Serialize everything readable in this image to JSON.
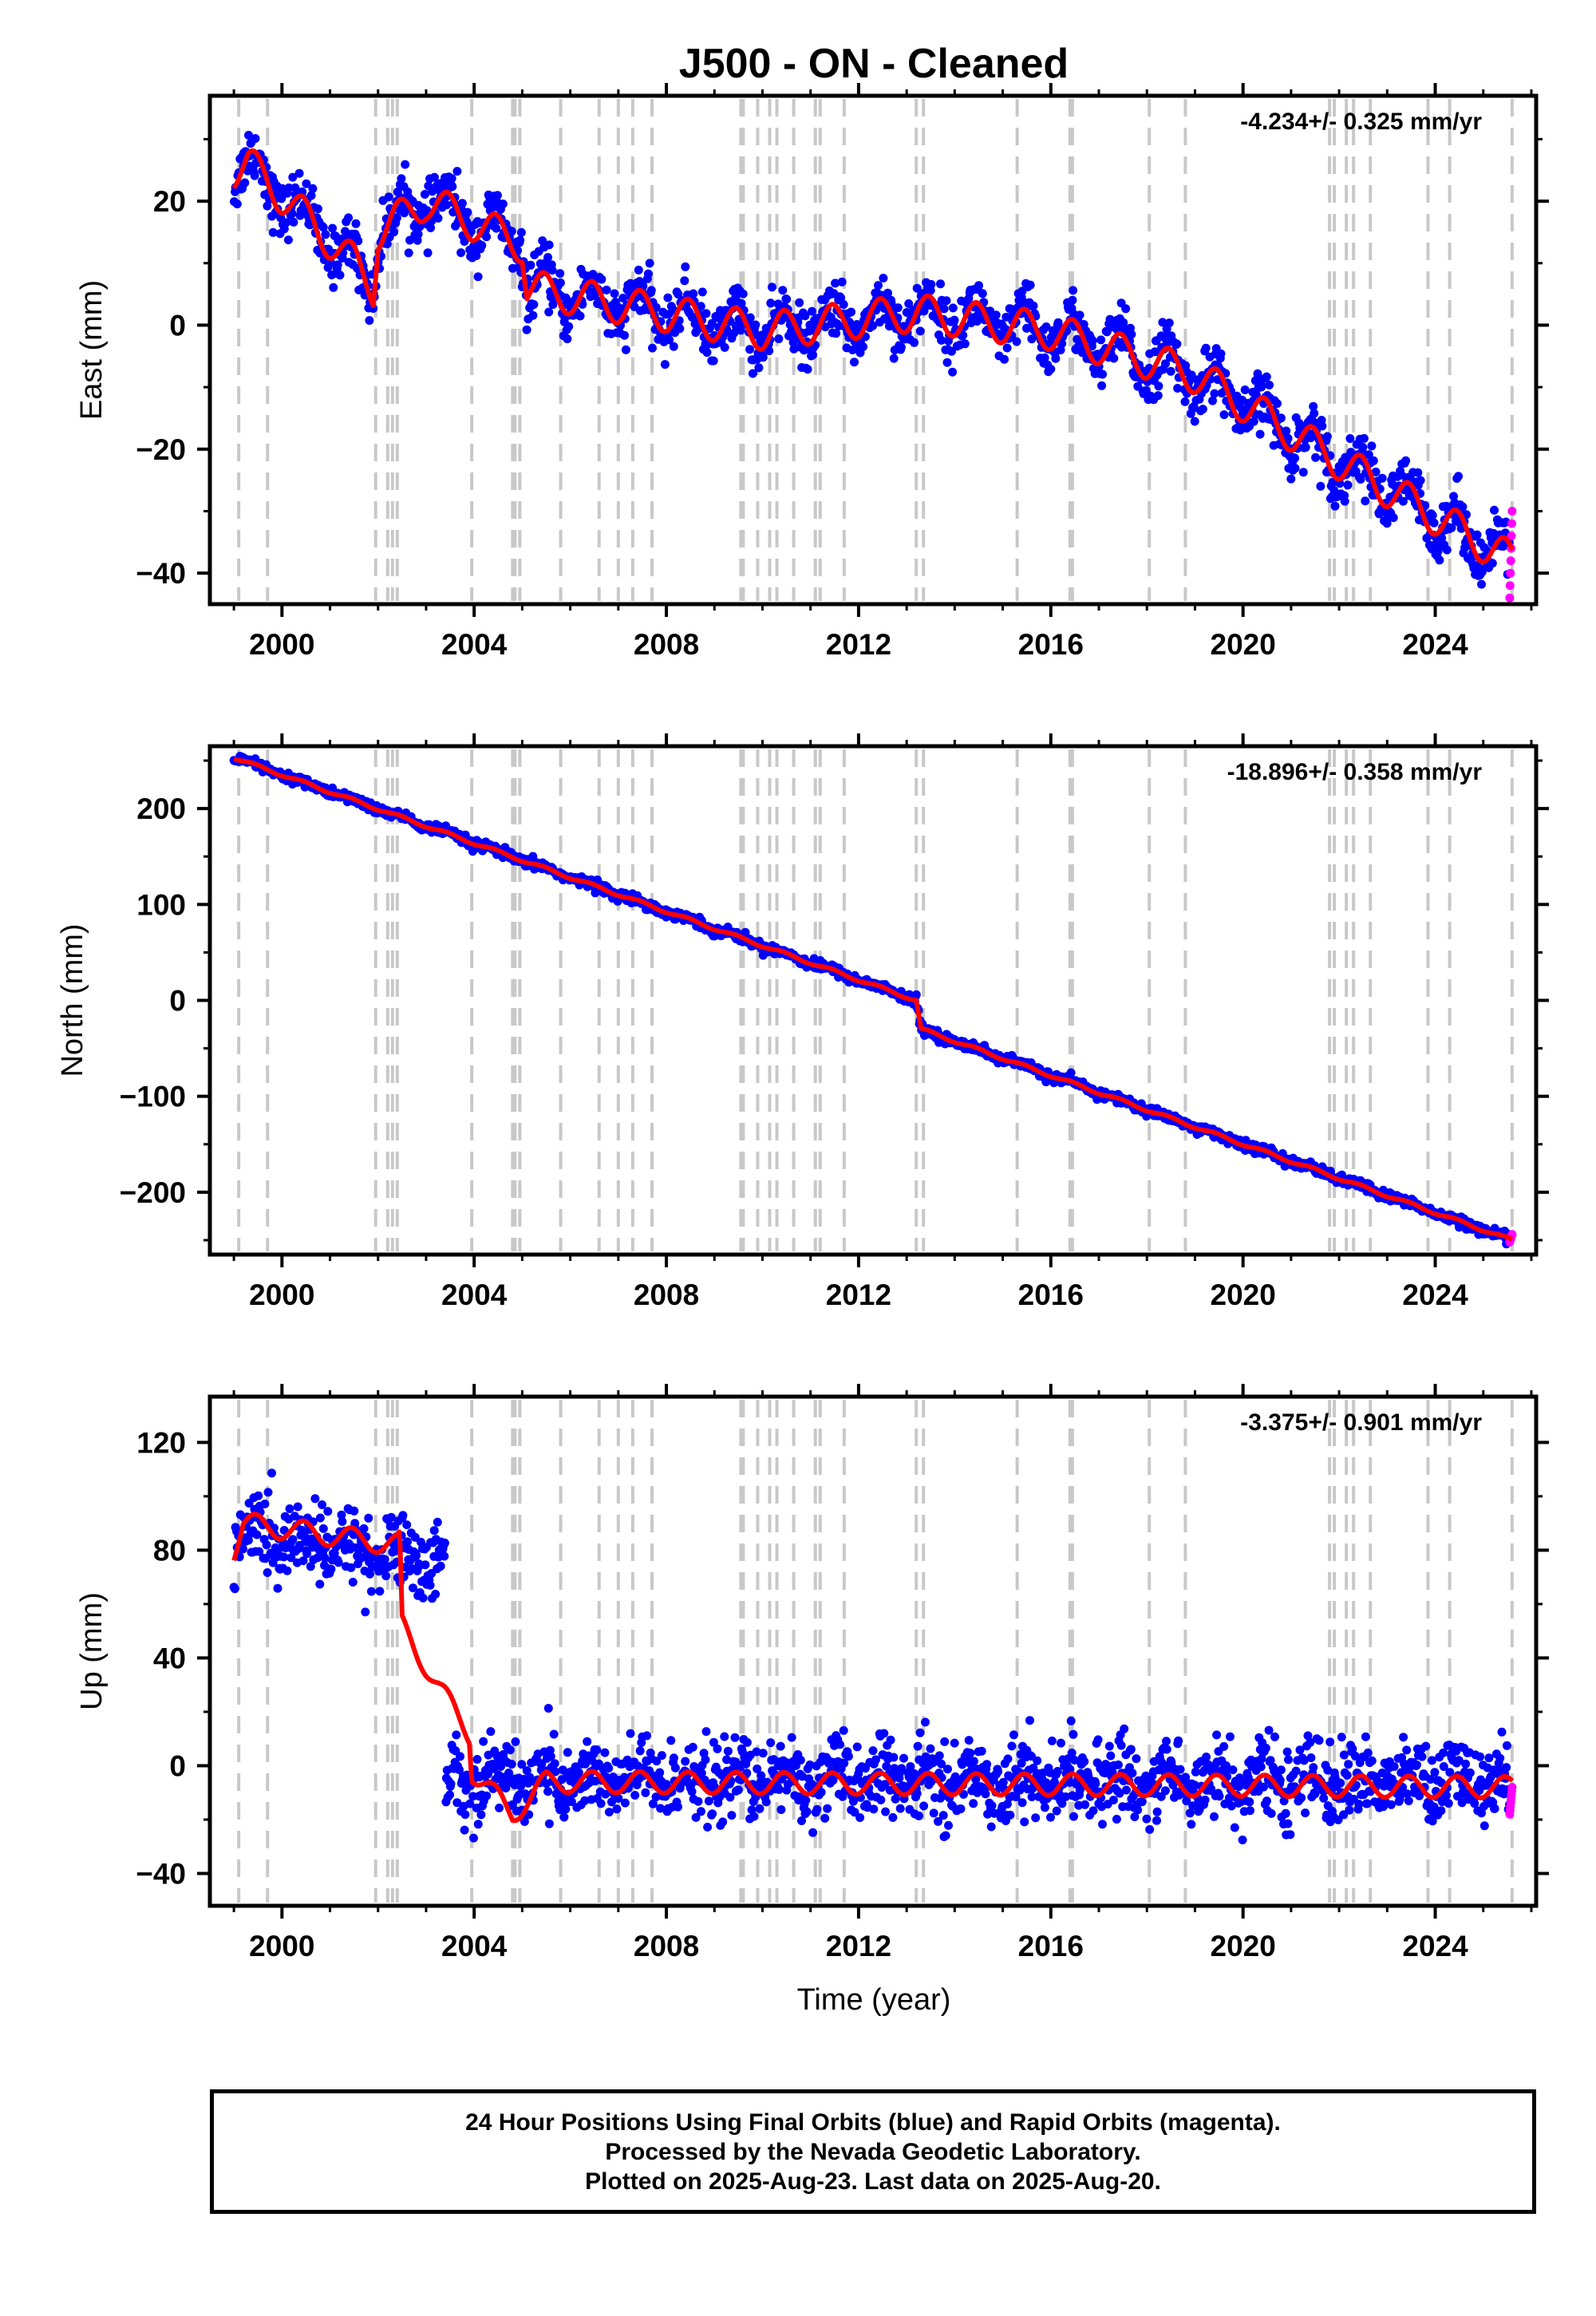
{
  "title": "J500  - ON - Cleaned",
  "caption": [
    "24 Hour Positions Using Final Orbits (blue) and Rapid Orbits (magenta).",
    "Processed by the Nevada Geodetic Laboratory.",
    "Plotted on 2025-Aug-23. Last data on 2025-Aug-20."
  ],
  "colors": {
    "final": "#0000ff",
    "rapid": "#ff00ff",
    "model": "#ff0000",
    "event": "#c8c8c8",
    "axis": "#000000"
  },
  "events": [
    1999.1,
    1999.7,
    2001.95,
    2002.2,
    2002.3,
    2002.4,
    2003.95,
    2004.8,
    2004.85,
    2004.95,
    2005.8,
    2006.6,
    2007.0,
    2007.3,
    2007.7,
    2009.55,
    2009.6,
    2009.9,
    2010.15,
    2010.3,
    2010.65,
    2011.1,
    2011.2,
    2011.7,
    2013.2,
    2013.35,
    2015.3,
    2016.4,
    2016.45,
    2018.05,
    2018.8,
    2021.8,
    2021.9,
    2022.15,
    2022.3,
    2022.65,
    2023.85,
    2024.3,
    2025.6
  ],
  "chart_data": [
    {
      "type": "scatter",
      "panel": "east",
      "ylabel": "East (mm)",
      "rate": "-4.234+/- 0.325 mm/yr",
      "xlim": [
        1998.5,
        2026.1
      ],
      "ylim": [
        -45,
        37
      ],
      "xticks": [
        2000,
        2004,
        2008,
        2012,
        2016,
        2020,
        2024
      ],
      "yticks": [
        -40,
        -20,
        0,
        20
      ],
      "x_tick_labels": [
        "2000",
        "2004",
        "2008",
        "2012",
        "2016",
        "2020",
        "2024"
      ],
      "y_tick_labels": [
        "−40",
        "−20",
        "0",
        "20"
      ],
      "series": [
        {
          "role": "trend_knots",
          "x": [
            1999.0,
            1999.3,
            2001.5,
            2001.9,
            2002.0,
            2003.0,
            2005.0,
            2005.1,
            2010.0,
            2013.2,
            2016.0,
            2019.0,
            2022.0,
            2025.6
          ],
          "y": [
            25,
            26,
            10,
            6,
            15,
            20,
            13,
            6,
            -1,
            2,
            -1,
            -8,
            -22,
            -38
          ]
        },
        {
          "role": "annual_amplitude_mm",
          "value": 3
        },
        {
          "role": "scatter_sd_mm",
          "value": 2.2
        },
        {
          "role": "rapid_last",
          "x": [
            2025.55,
            2025.6
          ],
          "y": [
            -44,
            -30
          ]
        }
      ]
    },
    {
      "type": "scatter",
      "panel": "north",
      "ylabel": "North (mm)",
      "rate": "-18.896+/- 0.358 mm/yr",
      "xlim": [
        1998.5,
        2026.1
      ],
      "ylim": [
        -265,
        265
      ],
      "xticks": [
        2000,
        2004,
        2008,
        2012,
        2016,
        2020,
        2024
      ],
      "yticks": [
        -200,
        -100,
        0,
        100,
        200
      ],
      "x_tick_labels": [
        "2000",
        "2004",
        "2008",
        "2012",
        "2016",
        "2020",
        "2024"
      ],
      "y_tick_labels": [
        "−200",
        "−100",
        "0",
        "100",
        "200"
      ],
      "series": [
        {
          "role": "trend_knots",
          "x": [
            1999.0,
            2013.2,
            2013.3,
            2025.6
          ],
          "y": [
            253,
            0,
            -30,
            -250
          ]
        },
        {
          "role": "annual_amplitude_mm",
          "value": 1.5
        },
        {
          "role": "scatter_sd_mm",
          "value": 2.5
        },
        {
          "role": "rapid_last",
          "x": [
            2025.55,
            2025.6
          ],
          "y": [
            -252,
            -244
          ]
        }
      ]
    },
    {
      "type": "scatter",
      "panel": "up",
      "ylabel": "Up (mm)",
      "xlabel": "Time (year)",
      "rate": "-3.375+/- 0.901 mm/yr",
      "xlim": [
        1998.5,
        2026.1
      ],
      "ylim": [
        -52,
        137
      ],
      "xticks": [
        2000,
        2004,
        2008,
        2012,
        2016,
        2020,
        2024
      ],
      "yticks": [
        -40,
        0,
        40,
        80,
        120
      ],
      "x_tick_labels": [
        "2000",
        "2004",
        "2008",
        "2012",
        "2016",
        "2020",
        "2024"
      ],
      "y_tick_labels": [
        "−40",
        "0",
        "40",
        "80",
        "120"
      ],
      "series": [
        {
          "role": "data_segments",
          "segments": [
            [
              1999.0,
              2003.4,
              86,
              76
            ],
            [
              2003.4,
              2025.6,
              -5,
              -6
            ]
          ]
        },
        {
          "role": "model_knots",
          "x": [
            1999.0,
            1999.2,
            2002.4,
            2002.45,
            2002.5,
            2003.0,
            2003.3,
            2003.9,
            2003.95,
            2004.8,
            2005.5,
            2025.6
          ],
          "y": [
            80,
            90,
            82,
            83,
            52,
            37,
            28,
            12,
            -2,
            -18,
            -6,
            -8
          ]
        },
        {
          "role": "annual_amplitude_mm",
          "value": 4
        },
        {
          "role": "scatter_sd_mm",
          "value": 7
        },
        {
          "role": "rapid_last",
          "x": [
            2025.55,
            2025.6
          ],
          "y": [
            -18,
            -8
          ]
        }
      ]
    }
  ]
}
